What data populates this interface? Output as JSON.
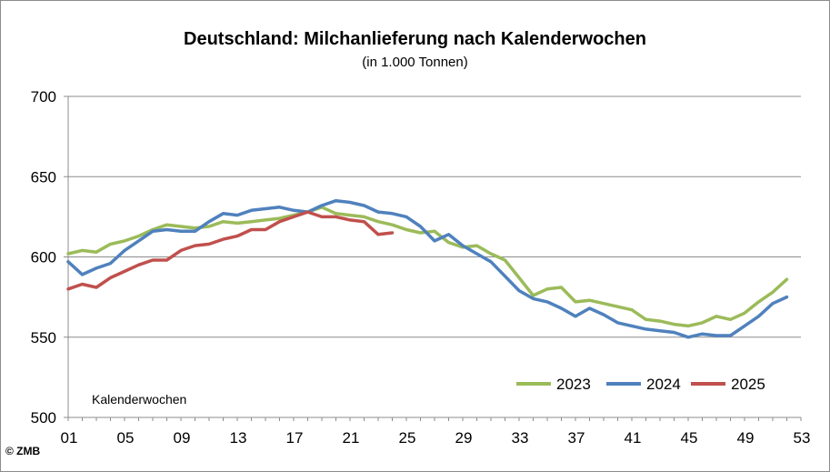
{
  "chart_data": {
    "type": "line",
    "title": "Deutschland: Milchanlieferung nach Kalenderwochen",
    "subtitle": "(in 1.000 Tonnen)",
    "xlabel": "Kalenderwochen",
    "ylabel": "",
    "xlim": [
      1,
      53
    ],
    "ylim": [
      500,
      700
    ],
    "xticks": [
      "01",
      "05",
      "09",
      "13",
      "17",
      "21",
      "25",
      "29",
      "33",
      "37",
      "41",
      "45",
      "49",
      "53"
    ],
    "yticks": [
      "500",
      "550",
      "600",
      "650",
      "700"
    ],
    "grid": "horizontal",
    "legend_position": "bottom-right",
    "series": [
      {
        "name": "2023",
        "color": "#9bbb59",
        "x": [
          1,
          2,
          3,
          4,
          5,
          6,
          7,
          8,
          9,
          10,
          11,
          12,
          13,
          14,
          15,
          16,
          17,
          18,
          19,
          20,
          21,
          22,
          23,
          24,
          25,
          26,
          27,
          28,
          29,
          30,
          31,
          32,
          33,
          34,
          35,
          36,
          37,
          38,
          39,
          40,
          41,
          42,
          43,
          44,
          45,
          46,
          47,
          48,
          49,
          50,
          51,
          52
        ],
        "values": [
          602,
          604,
          603,
          608,
          610,
          613,
          617,
          620,
          619,
          618,
          619,
          622,
          621,
          622,
          623,
          624,
          626,
          628,
          631,
          627,
          626,
          625,
          622,
          620,
          617,
          615,
          616,
          609,
          606,
          607,
          602,
          598,
          587,
          576,
          580,
          581,
          572,
          573,
          571,
          569,
          567,
          561,
          560,
          558,
          557,
          559,
          563,
          561,
          565,
          572,
          578,
          586
        ]
      },
      {
        "name": "2024",
        "color": "#4f81bd",
        "x": [
          1,
          2,
          3,
          4,
          5,
          6,
          7,
          8,
          9,
          10,
          11,
          12,
          13,
          14,
          15,
          16,
          17,
          18,
          19,
          20,
          21,
          22,
          23,
          24,
          25,
          26,
          27,
          28,
          29,
          30,
          31,
          32,
          33,
          34,
          35,
          36,
          37,
          38,
          39,
          40,
          41,
          42,
          43,
          44,
          45,
          46,
          47,
          48,
          49,
          50,
          51,
          52
        ],
        "values": [
          597,
          589,
          593,
          596,
          604,
          610,
          616,
          617,
          616,
          616,
          622,
          627,
          626,
          629,
          630,
          631,
          629,
          628,
          632,
          635,
          634,
          632,
          628,
          627,
          625,
          619,
          610,
          614,
          607,
          602,
          597,
          588,
          579,
          574,
          572,
          568,
          563,
          568,
          564,
          559,
          557,
          555,
          554,
          553,
          550,
          552,
          551,
          551,
          557,
          563,
          571,
          575
        ]
      },
      {
        "name": "2025",
        "color": "#c0504d",
        "x": [
          1,
          2,
          3,
          4,
          5,
          6,
          7,
          8,
          9,
          10,
          11,
          12,
          13,
          14,
          15,
          16,
          17,
          18,
          19,
          20,
          21,
          22,
          23,
          24
        ],
        "values": [
          580,
          583,
          581,
          587,
          591,
          595,
          598,
          598,
          604,
          607,
          608,
          611,
          613,
          617,
          617,
          622,
          625,
          628,
          625,
          625,
          623,
          622,
          614,
          615
        ]
      }
    ]
  },
  "copyright": "© ZMB"
}
